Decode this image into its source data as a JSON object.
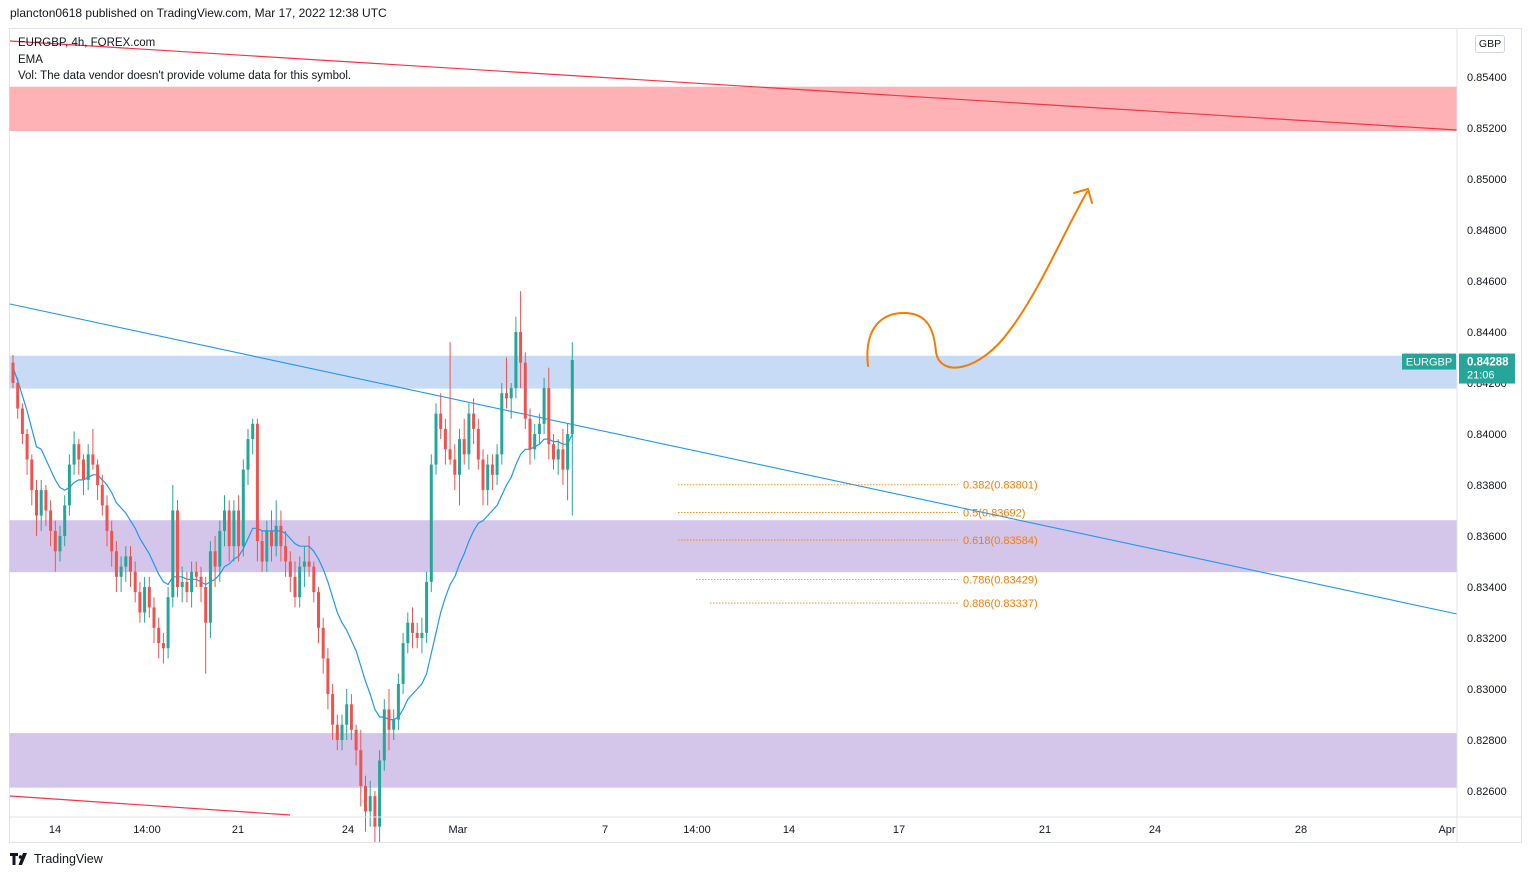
{
  "header": {
    "published_text": "plancton0618 published on TradingView.com, Mar 17, 2022 12:38 UTC"
  },
  "legend": {
    "symbol_line": "EURGBP, 4h, FOREX.com",
    "indicator": "EMA",
    "volume_note": "Vol: The data vendor doesn't provide volume data for this symbol."
  },
  "currency_button": "GBP",
  "price_label": {
    "symbol": "EURGBP",
    "price": "0.84288",
    "countdown": "21:06",
    "color": "#26a69a"
  },
  "footer": {
    "brand": "TradingView",
    "logo_icon": "tradingview-logo-icon"
  },
  "chart_data": {
    "type": "candlestick",
    "symbol": "EURGBP",
    "timeframe": "4h",
    "ylim": [
      0.825,
      0.8565
    ],
    "y_ticks": [
      "0.85400",
      "0.85200",
      "0.85000",
      "0.84800",
      "0.84600",
      "0.84400",
      "0.84200",
      "0.84000",
      "0.83800",
      "0.83600",
      "0.83400",
      "0.83200",
      "0.83000",
      "0.82800",
      "0.82600"
    ],
    "x_ticks": [
      "14",
      "14:00",
      "21",
      "24",
      "Mar",
      "7",
      "14:00",
      "14",
      "17",
      "21",
      "24",
      "28",
      "Apr"
    ],
    "colors": {
      "up": "#26a69a",
      "down": "#ef5350",
      "ema": "#2196f3",
      "trendline": "#2196f3",
      "red_line": "#f23645",
      "arrow": "#f57c00",
      "fib": "#f57c00"
    },
    "zones": [
      {
        "type": "resistance",
        "from": 0.8519,
        "to": 0.8536,
        "color": "#ffb2b5"
      },
      {
        "type": "key-level",
        "from": 0.8418,
        "to": 0.84305,
        "color": "#c7dbf6"
      },
      {
        "type": "support",
        "from": 0.8346,
        "to": 0.8366,
        "color": "#d4c6ea"
      },
      {
        "type": "support",
        "from": 0.82615,
        "to": 0.82825,
        "color": "#d4c6ea"
      }
    ],
    "fib_levels": [
      {
        "label": "0.382(0.83801)",
        "value": 0.83801
      },
      {
        "label": "0.5(0.83692)",
        "value": 0.83692
      },
      {
        "label": "0.618(0.83584)",
        "value": 0.83584
      },
      {
        "label": "0.786(0.83429)",
        "value": 0.83429
      },
      {
        "label": "0.886(0.83337)",
        "value": 0.83337
      }
    ],
    "candles": [
      [
        0.8428,
        0.8431,
        0.8418,
        0.842
      ],
      [
        0.842,
        0.8422,
        0.8406,
        0.841
      ],
      [
        0.841,
        0.8412,
        0.8396,
        0.84
      ],
      [
        0.84,
        0.8402,
        0.8384,
        0.839
      ],
      [
        0.839,
        0.8392,
        0.8372,
        0.8378
      ],
      [
        0.8378,
        0.8382,
        0.836,
        0.8368
      ],
      [
        0.8368,
        0.8382,
        0.8362,
        0.8378
      ],
      [
        0.8378,
        0.838,
        0.8364,
        0.837
      ],
      [
        0.837,
        0.8374,
        0.8356,
        0.8362
      ],
      [
        0.8362,
        0.8366,
        0.8346,
        0.8354
      ],
      [
        0.8354,
        0.8364,
        0.835,
        0.836
      ],
      [
        0.836,
        0.8376,
        0.8356,
        0.8372
      ],
      [
        0.8372,
        0.8392,
        0.8368,
        0.8388
      ],
      [
        0.8388,
        0.8401,
        0.8384,
        0.8396
      ],
      [
        0.8396,
        0.8398,
        0.8384,
        0.839
      ],
      [
        0.839,
        0.8392,
        0.8376,
        0.8382
      ],
      [
        0.8382,
        0.8396,
        0.8378,
        0.8392
      ],
      [
        0.8392,
        0.8402,
        0.8386,
        0.8388
      ],
      [
        0.8388,
        0.839,
        0.8374,
        0.838
      ],
      [
        0.838,
        0.8384,
        0.8368,
        0.8372
      ],
      [
        0.8372,
        0.8376,
        0.8356,
        0.8362
      ],
      [
        0.8362,
        0.8366,
        0.8348,
        0.8354
      ],
      [
        0.8354,
        0.8358,
        0.8338,
        0.8344
      ],
      [
        0.8344,
        0.8352,
        0.8338,
        0.8348
      ],
      [
        0.8348,
        0.8356,
        0.8342,
        0.8352
      ],
      [
        0.8352,
        0.8356,
        0.834,
        0.8346
      ],
      [
        0.8346,
        0.835,
        0.8334,
        0.8338
      ],
      [
        0.8338,
        0.8342,
        0.8326,
        0.833
      ],
      [
        0.833,
        0.8344,
        0.8326,
        0.834
      ],
      [
        0.834,
        0.8344,
        0.8328,
        0.8332
      ],
      [
        0.8332,
        0.8336,
        0.8318,
        0.8324
      ],
      [
        0.8324,
        0.8328,
        0.8312,
        0.8318
      ],
      [
        0.8318,
        0.8322,
        0.831,
        0.8316
      ],
      [
        0.8316,
        0.834,
        0.8312,
        0.8336
      ],
      [
        0.8336,
        0.838,
        0.8332,
        0.837
      ],
      [
        0.837,
        0.8374,
        0.8336,
        0.834
      ],
      [
        0.834,
        0.8348,
        0.8334,
        0.8342
      ],
      [
        0.8342,
        0.8346,
        0.8334,
        0.8338
      ],
      [
        0.8338,
        0.835,
        0.8332,
        0.8346
      ],
      [
        0.8346,
        0.835,
        0.834,
        0.8344
      ],
      [
        0.8344,
        0.8348,
        0.8334,
        0.834
      ],
      [
        0.834,
        0.8344,
        0.8306,
        0.8326
      ],
      [
        0.8326,
        0.8358,
        0.832,
        0.8354
      ],
      [
        0.8354,
        0.836,
        0.834,
        0.8348
      ],
      [
        0.8348,
        0.8366,
        0.8342,
        0.8362
      ],
      [
        0.8362,
        0.8376,
        0.8356,
        0.837
      ],
      [
        0.837,
        0.8374,
        0.835,
        0.8356
      ],
      [
        0.8356,
        0.8374,
        0.835,
        0.837
      ],
      [
        0.837,
        0.8376,
        0.835,
        0.8356
      ],
      [
        0.8356,
        0.839,
        0.8352,
        0.8386
      ],
      [
        0.8386,
        0.8402,
        0.838,
        0.8398
      ],
      [
        0.8398,
        0.8406,
        0.8392,
        0.8404
      ],
      [
        0.8404,
        0.8406,
        0.835,
        0.8358
      ],
      [
        0.8358,
        0.8362,
        0.8346,
        0.835
      ],
      [
        0.835,
        0.8366,
        0.8346,
        0.8362
      ],
      [
        0.8362,
        0.837,
        0.835,
        0.8356
      ],
      [
        0.8356,
        0.8374,
        0.8352,
        0.8364
      ],
      [
        0.8364,
        0.837,
        0.835,
        0.8356
      ],
      [
        0.8356,
        0.8362,
        0.8344,
        0.835
      ],
      [
        0.835,
        0.8354,
        0.8338,
        0.8344
      ],
      [
        0.8344,
        0.835,
        0.8332,
        0.8336
      ],
      [
        0.8336,
        0.8352,
        0.8332,
        0.8348
      ],
      [
        0.8348,
        0.8356,
        0.834,
        0.835
      ],
      [
        0.835,
        0.836,
        0.8344,
        0.8348
      ],
      [
        0.8348,
        0.835,
        0.8334,
        0.8338
      ],
      [
        0.8338,
        0.834,
        0.8318,
        0.8324
      ],
      [
        0.8324,
        0.8328,
        0.8306,
        0.8312
      ],
      [
        0.8312,
        0.8316,
        0.8292,
        0.8298
      ],
      [
        0.8298,
        0.8302,
        0.828,
        0.8286
      ],
      [
        0.8286,
        0.829,
        0.8276,
        0.828
      ],
      [
        0.828,
        0.829,
        0.8276,
        0.8286
      ],
      [
        0.8286,
        0.83,
        0.828,
        0.8294
      ],
      [
        0.8294,
        0.8298,
        0.828,
        0.8284
      ],
      [
        0.8284,
        0.8286,
        0.827,
        0.8276
      ],
      [
        0.8276,
        0.8284,
        0.8254,
        0.8262
      ],
      [
        0.8262,
        0.8266,
        0.8244,
        0.8252
      ],
      [
        0.8252,
        0.8264,
        0.8246,
        0.8258
      ],
      [
        0.8258,
        0.826,
        0.824,
        0.8246
      ],
      [
        0.8246,
        0.8276,
        0.824,
        0.8272
      ],
      [
        0.8272,
        0.8296,
        0.8268,
        0.8292
      ],
      [
        0.8292,
        0.83,
        0.8276,
        0.8284
      ],
      [
        0.8284,
        0.8292,
        0.828,
        0.8288
      ],
      [
        0.8288,
        0.8306,
        0.8284,
        0.8302
      ],
      [
        0.8302,
        0.8322,
        0.8298,
        0.8318
      ],
      [
        0.8318,
        0.833,
        0.8314,
        0.8326
      ],
      [
        0.8326,
        0.8332,
        0.8316,
        0.8322
      ],
      [
        0.8322,
        0.8326,
        0.8316,
        0.832
      ],
      [
        0.832,
        0.8328,
        0.8314,
        0.8322
      ],
      [
        0.8322,
        0.8346,
        0.8318,
        0.8342
      ],
      [
        0.8342,
        0.8392,
        0.8338,
        0.8388
      ],
      [
        0.8388,
        0.8412,
        0.8384,
        0.8408
      ],
      [
        0.8408,
        0.8416,
        0.8398,
        0.8402
      ],
      [
        0.8402,
        0.8406,
        0.8388,
        0.8394
      ],
      [
        0.8394,
        0.8436,
        0.8388,
        0.839
      ],
      [
        0.839,
        0.8396,
        0.8378,
        0.8384
      ],
      [
        0.8384,
        0.8402,
        0.8372,
        0.8398
      ],
      [
        0.8398,
        0.8406,
        0.8388,
        0.8392
      ],
      [
        0.8392,
        0.8412,
        0.8386,
        0.8408
      ],
      [
        0.8408,
        0.8414,
        0.8396,
        0.8402
      ],
      [
        0.8402,
        0.8406,
        0.8386,
        0.839
      ],
      [
        0.839,
        0.8394,
        0.8372,
        0.8378
      ],
      [
        0.8378,
        0.8392,
        0.8372,
        0.8388
      ],
      [
        0.8388,
        0.8392,
        0.8378,
        0.8384
      ],
      [
        0.8384,
        0.8396,
        0.838,
        0.8392
      ],
      [
        0.8392,
        0.842,
        0.8388,
        0.8416
      ],
      [
        0.8416,
        0.843,
        0.841,
        0.8414
      ],
      [
        0.8414,
        0.842,
        0.8406,
        0.8418
      ],
      [
        0.8418,
        0.8446,
        0.8414,
        0.844
      ],
      [
        0.844,
        0.8456,
        0.8418,
        0.8428
      ],
      [
        0.8428,
        0.8432,
        0.8402,
        0.8406
      ],
      [
        0.8406,
        0.841,
        0.8388,
        0.8394
      ],
      [
        0.8394,
        0.8404,
        0.839,
        0.84
      ],
      [
        0.84,
        0.8408,
        0.8396,
        0.8404
      ],
      [
        0.8404,
        0.8422,
        0.84,
        0.8418
      ],
      [
        0.8418,
        0.8426,
        0.839,
        0.8396
      ],
      [
        0.8396,
        0.84,
        0.8386,
        0.839
      ],
      [
        0.839,
        0.8398,
        0.8384,
        0.8394
      ],
      [
        0.8394,
        0.8402,
        0.838,
        0.8386
      ],
      [
        0.8386,
        0.8404,
        0.8374,
        0.84
      ],
      [
        0.84,
        0.8436,
        0.8368,
        0.8429
      ]
    ],
    "ema": [
      0.8426,
      0.8421,
      0.8415,
      0.8409,
      0.8402,
      0.8395,
      0.8394,
      0.839,
      0.8386,
      0.8382,
      0.8379,
      0.8378,
      0.8379,
      0.8381,
      0.8382,
      0.8382,
      0.8383,
      0.8384,
      0.8384,
      0.8382,
      0.838,
      0.8377,
      0.8373,
      0.8371,
      0.8369,
      0.8366,
      0.8363,
      0.8359,
      0.8356,
      0.8353,
      0.8349,
      0.8345,
      0.8342,
      0.8341,
      0.8344,
      0.8344,
      0.8344,
      0.8343,
      0.8343,
      0.8343,
      0.8342,
      0.8341,
      0.8342,
      0.8343,
      0.8345,
      0.8348,
      0.8349,
      0.8351,
      0.8352,
      0.8355,
      0.8359,
      0.8363,
      0.8363,
      0.8362,
      0.8362,
      0.8362,
      0.8362,
      0.8362,
      0.8361,
      0.8359,
      0.8357,
      0.8356,
      0.8356,
      0.8356,
      0.8354,
      0.8351,
      0.8347,
      0.8342,
      0.8336,
      0.833,
      0.8326,
      0.8323,
      0.8319,
      0.8315,
      0.8309,
      0.8303,
      0.8298,
      0.8292,
      0.8289,
      0.8289,
      0.8288,
      0.8288,
      0.8289,
      0.8292,
      0.8296,
      0.8298,
      0.83,
      0.8302,
      0.8306,
      0.8314,
      0.8322,
      0.833,
      0.8336,
      0.8341,
      0.8344,
      0.8349,
      0.8353,
      0.8358,
      0.8362,
      0.8365,
      0.8366,
      0.8368,
      0.837,
      0.8372,
      0.8376,
      0.838,
      0.8383,
      0.8388,
      0.8392,
      0.8394,
      0.8394,
      0.8395,
      0.8396,
      0.8398,
      0.8398,
      0.8397,
      0.8397,
      0.8396,
      0.8396,
      0.84
    ]
  }
}
